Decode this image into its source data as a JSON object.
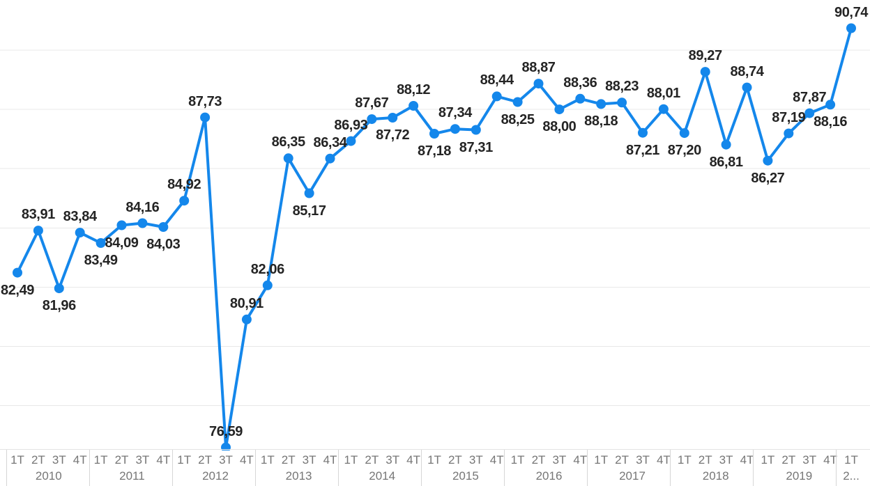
{
  "chart_data": {
    "type": "line",
    "title": "",
    "xlabel": "",
    "ylabel": "",
    "legend": false,
    "grid": true,
    "decimal_separator": ",",
    "ylim": [
      76,
      91.5
    ],
    "y_gridlines": [
      78,
      80,
      82,
      84,
      86,
      88,
      90
    ],
    "colors": {
      "series": "#1487eb",
      "data_label": "#242424",
      "axis_text": "#767676",
      "gridline": "#e8e8e8",
      "separator": "#d6d6d6",
      "axis_line": "#e3e3e3",
      "background": "#ffffff"
    },
    "x_quarter_format": "T",
    "points": [
      {
        "quarter": "1T",
        "year": "2010",
        "value": 82.49,
        "label": "82,49",
        "label_pos": "below"
      },
      {
        "quarter": "2T",
        "year": "2010",
        "value": 83.91,
        "label": "83,91",
        "label_pos": "above"
      },
      {
        "quarter": "3T",
        "year": "2010",
        "value": 81.96,
        "label": "81,96",
        "label_pos": "below"
      },
      {
        "quarter": "4T",
        "year": "2010",
        "value": 83.84,
        "label": "83,84",
        "label_pos": "above"
      },
      {
        "quarter": "1T",
        "year": "2011",
        "value": 83.49,
        "label": "83,49",
        "label_pos": "below"
      },
      {
        "quarter": "2T",
        "year": "2011",
        "value": 84.09,
        "label": "84,09",
        "label_pos": "below"
      },
      {
        "quarter": "3T",
        "year": "2011",
        "value": 84.16,
        "label": "84,16",
        "label_pos": "above"
      },
      {
        "quarter": "4T",
        "year": "2011",
        "value": 84.03,
        "label": "84,03",
        "label_pos": "below"
      },
      {
        "quarter": "1T",
        "year": "2012",
        "value": 84.92,
        "label": "84,92",
        "label_pos": "above"
      },
      {
        "quarter": "2T",
        "year": "2012",
        "value": 87.73,
        "label": "87,73",
        "label_pos": "above"
      },
      {
        "quarter": "3T",
        "year": "2012",
        "value": 76.59,
        "label": "76,59",
        "label_pos": "above"
      },
      {
        "quarter": "4T",
        "year": "2012",
        "value": 80.91,
        "label": "80,91",
        "label_pos": "above"
      },
      {
        "quarter": "1T",
        "year": "2013",
        "value": 82.06,
        "label": "82,06",
        "label_pos": "above"
      },
      {
        "quarter": "2T",
        "year": "2013",
        "value": 86.35,
        "label": "86,35",
        "label_pos": "above"
      },
      {
        "quarter": "3T",
        "year": "2013",
        "value": 85.17,
        "label": "85,17",
        "label_pos": "below"
      },
      {
        "quarter": "4T",
        "year": "2013",
        "value": 86.34,
        "label": "86,34",
        "label_pos": "above"
      },
      {
        "quarter": "1T",
        "year": "2014",
        "value": 86.93,
        "label": "86,93",
        "label_pos": "above"
      },
      {
        "quarter": "2T",
        "year": "2014",
        "value": 87.67,
        "label": "87,67",
        "label_pos": "above"
      },
      {
        "quarter": "3T",
        "year": "2014",
        "value": 87.72,
        "label": "87,72",
        "label_pos": "below"
      },
      {
        "quarter": "4T",
        "year": "2014",
        "value": 88.12,
        "label": "88,12",
        "label_pos": "above"
      },
      {
        "quarter": "1T",
        "year": "2015",
        "value": 87.18,
        "label": "87,18",
        "label_pos": "below"
      },
      {
        "quarter": "2T",
        "year": "2015",
        "value": 87.34,
        "label": "87,34",
        "label_pos": "above"
      },
      {
        "quarter": "3T",
        "year": "2015",
        "value": 87.31,
        "label": "87,31",
        "label_pos": "below"
      },
      {
        "quarter": "4T",
        "year": "2015",
        "value": 88.44,
        "label": "88,44",
        "label_pos": "above"
      },
      {
        "quarter": "1T",
        "year": "2016",
        "value": 88.25,
        "label": "88,25",
        "label_pos": "below"
      },
      {
        "quarter": "2T",
        "year": "2016",
        "value": 88.87,
        "label": "88,87",
        "label_pos": "above"
      },
      {
        "quarter": "3T",
        "year": "2016",
        "value": 88.0,
        "label": "88,00",
        "label_pos": "below"
      },
      {
        "quarter": "4T",
        "year": "2016",
        "value": 88.36,
        "label": "88,36",
        "label_pos": "above"
      },
      {
        "quarter": "1T",
        "year": "2017",
        "value": 88.18,
        "label": "88,18",
        "label_pos": "below"
      },
      {
        "quarter": "2T",
        "year": "2017",
        "value": 88.23,
        "label": "88,23",
        "label_pos": "above"
      },
      {
        "quarter": "3T",
        "year": "2017",
        "value": 87.21,
        "label": "87,21",
        "label_pos": "below"
      },
      {
        "quarter": "4T",
        "year": "2017",
        "value": 88.01,
        "label": "88,01",
        "label_pos": "above"
      },
      {
        "quarter": "1T",
        "year": "2018",
        "value": 87.2,
        "label": "87,20",
        "label_pos": "below"
      },
      {
        "quarter": "2T",
        "year": "2018",
        "value": 89.27,
        "label": "89,27",
        "label_pos": "above"
      },
      {
        "quarter": "3T",
        "year": "2018",
        "value": 86.81,
        "label": "86,81",
        "label_pos": "below"
      },
      {
        "quarter": "4T",
        "year": "2018",
        "value": 88.74,
        "label": "88,74",
        "label_pos": "above"
      },
      {
        "quarter": "1T",
        "year": "2019",
        "value": 86.27,
        "label": "86,27",
        "label_pos": "below"
      },
      {
        "quarter": "2T",
        "year": "2019",
        "value": 87.19,
        "label": "87,19",
        "label_pos": "above"
      },
      {
        "quarter": "3T",
        "year": "2019",
        "value": 87.87,
        "label": "87,87",
        "label_pos": "above"
      },
      {
        "quarter": "4T",
        "year": "2019",
        "value": 88.16,
        "label": "88,16",
        "label_pos": "below"
      },
      {
        "quarter": "1T",
        "year": "2...",
        "value": 90.74,
        "label": "90,74",
        "label_pos": "above"
      }
    ]
  }
}
